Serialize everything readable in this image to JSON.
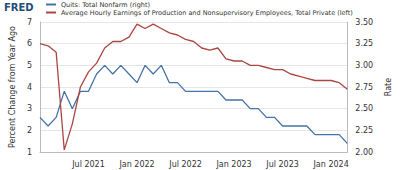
{
  "chart_data": {
    "type": "line",
    "annotations": [
      "FRED"
    ],
    "y_label": "Percent Change from Year Ago",
    "y2_label": "Rate",
    "categories": [
      null,
      null,
      null,
      null,
      null,
      null,
      "Jul 2021",
      null,
      null,
      null,
      null,
      null,
      "Jan 2022",
      null,
      null,
      null,
      null,
      null,
      "Jul 2022",
      null,
      null,
      null,
      null,
      null,
      "Jan 2023",
      null,
      null,
      null,
      null,
      null,
      "Jul 2023",
      null,
      null,
      null,
      null,
      null,
      "Jan 2024",
      null,
      null
    ],
    "series": [
      {
        "name": "Quits: Total Nonfarm (right)",
        "color": "#4572a7",
        "axis": "y2",
        "values": [
          2.4,
          2.3,
          2.4,
          2.7,
          2.5,
          2.7,
          2.7,
          2.9,
          3.0,
          2.9,
          3.0,
          2.9,
          2.8,
          3.0,
          2.9,
          3.0,
          2.8,
          2.8,
          2.7,
          2.7,
          2.7,
          2.7,
          2.7,
          2.6,
          2.6,
          2.6,
          2.5,
          2.5,
          2.4,
          2.4,
          2.3,
          2.3,
          2.3,
          2.3,
          2.2,
          2.2,
          2.2,
          2.2,
          2.1
        ]
      },
      {
        "name": "Average Hourly Earnings of Production and Nonsupervisory Employees, Total Private (left)",
        "color": "#aa4643",
        "axis": "y",
        "values": [
          6.0,
          5.9,
          5.6,
          1.1,
          2.3,
          4.0,
          4.7,
          5.1,
          5.8,
          6.1,
          6.1,
          6.3,
          6.9,
          6.7,
          6.9,
          6.7,
          6.5,
          6.4,
          6.2,
          6.1,
          5.8,
          5.7,
          5.8,
          5.3,
          5.2,
          5.2,
          5.0,
          5.0,
          4.9,
          4.8,
          4.8,
          4.6,
          4.5,
          4.4,
          4.3,
          4.3,
          4.3,
          4.2,
          3.9
        ]
      }
    ],
    "ylim": [
      1,
      7
    ],
    "yticks": [
      1,
      2,
      3,
      4,
      5,
      6,
      7
    ],
    "y2lim": [
      2,
      3.5
    ],
    "y2ticks": [
      {
        "value": 2,
        "label": "2.00"
      },
      {
        "value": 2.25,
        "label": "2.25"
      },
      {
        "value": 2.5,
        "label": "2.50"
      },
      {
        "value": 2.75,
        "label": "2.75"
      },
      {
        "value": 3,
        "label": "3.00"
      },
      {
        "value": 3.25,
        "label": "3.25"
      },
      {
        "value": 3.5,
        "label": "3.50"
      }
    ],
    "grid": true,
    "legend": "top-left"
  }
}
